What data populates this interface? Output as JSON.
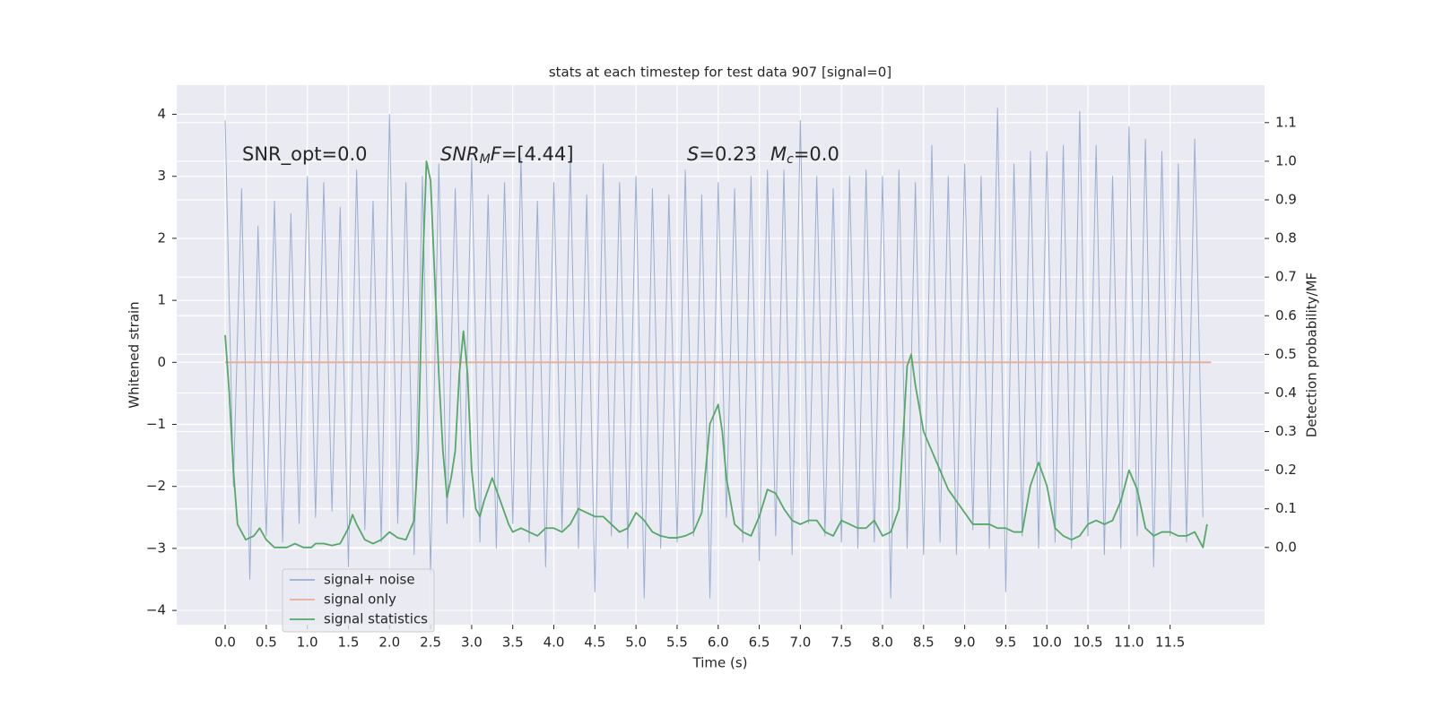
{
  "chart_data": {
    "type": "line",
    "title": "stats at each timestep for test data 907 [signal=0]",
    "xlabel": "Time (s)",
    "ylabel": "Whitened strain",
    "y2label": "Detection probability/MF",
    "xlim": [
      -0.59,
      12.65
    ],
    "ylim": [
      -4.23,
      4.47
    ],
    "y2lim": [
      -0.2,
      1.197
    ],
    "grid": true,
    "legend": "lower left",
    "xticks": [
      {
        "value": 0,
        "label": "0.0"
      },
      0.5,
      {
        "value": 1,
        "label": "1.0"
      },
      1.5,
      {
        "value": 2,
        "label": "2.0"
      },
      2.5,
      {
        "value": 3,
        "label": "3.0"
      },
      3.5,
      {
        "value": 4,
        "label": "4.0"
      },
      4.5,
      {
        "value": 5,
        "label": "5.0"
      },
      5.5,
      {
        "value": 6,
        "label": "6.0"
      },
      6.5,
      {
        "value": 7,
        "label": "7.0"
      },
      7.5,
      {
        "value": 8,
        "label": "8.0"
      },
      8.5,
      {
        "value": 9,
        "label": "9.0"
      },
      9.5,
      {
        "value": 10,
        "label": "10.0"
      },
      10.5,
      {
        "value": 11,
        "label": "11.0"
      },
      11.5
    ],
    "yticks": [
      {
        "value": -4,
        "label": "−4"
      },
      {
        "value": -3,
        "label": "−3"
      },
      {
        "value": -2,
        "label": "−2"
      },
      {
        "value": -1,
        "label": "−1"
      },
      0,
      1,
      2,
      3,
      4
    ],
    "y2ticks": [
      {
        "value": 0,
        "label": "0.0"
      },
      0.1,
      0.2,
      0.3,
      0.4,
      0.5,
      0.6,
      0.7,
      0.8,
      0.9,
      {
        "value": 1,
        "label": "1.0"
      },
      1.1
    ],
    "annotations": [
      [
        {
          "text": "SNR_opt=0.0"
        }
      ],
      [
        {
          "text": "SNR",
          "italic": true
        },
        {
          "text": "M",
          "italic": true,
          "sub": true
        },
        {
          "text": "F",
          "italic": true
        },
        {
          "text": "=[4.44]"
        }
      ],
      [
        {
          "text": "S",
          "italic": true
        },
        {
          "text": "=0.23"
        }
      ],
      [
        {
          "text": "M",
          "italic": true
        },
        {
          "text": "c",
          "italic": true,
          "sub": true
        },
        {
          "text": "=0.0"
        }
      ]
    ],
    "series": [
      {
        "name": "signal+ noise",
        "color": "#9aaed2",
        "x": [
          0.0,
          0.1,
          0.2,
          0.3,
          0.4,
          0.5,
          0.6,
          0.7,
          0.8,
          0.9,
          1.0,
          1.1,
          1.2,
          1.3,
          1.4,
          1.5,
          1.6,
          1.7,
          1.8,
          1.9,
          2.0,
          2.1,
          2.2,
          2.3,
          2.4,
          2.5,
          2.6,
          2.7,
          2.8,
          2.9,
          3.0,
          3.1,
          3.2,
          3.3,
          3.4,
          3.5,
          3.6,
          3.7,
          3.8,
          3.9,
          4.0,
          4.1,
          4.2,
          4.3,
          4.4,
          4.5,
          4.6,
          4.7,
          4.8,
          4.9,
          5.0,
          5.1,
          5.2,
          5.3,
          5.4,
          5.5,
          5.6,
          5.7,
          5.8,
          5.9,
          6.0,
          6.1,
          6.2,
          6.3,
          6.4,
          6.5,
          6.6,
          6.7,
          6.8,
          6.9,
          7.0,
          7.1,
          7.2,
          7.3,
          7.4,
          7.5,
          7.6,
          7.7,
          7.8,
          7.9,
          8.0,
          8.1,
          8.2,
          8.3,
          8.4,
          8.5,
          8.6,
          8.7,
          8.8,
          8.9,
          9.0,
          9.1,
          9.2,
          9.3,
          9.4,
          9.5,
          9.6,
          9.7,
          9.8,
          9.9,
          10.0,
          10.1,
          10.2,
          10.3,
          10.4,
          10.5,
          10.6,
          10.7,
          10.8,
          10.9,
          11.0,
          11.1,
          11.2,
          11.3,
          11.4,
          11.5,
          11.6,
          11.7,
          11.8,
          11.9
        ],
        "values": [
          3.9,
          -2.0,
          2.8,
          -3.5,
          2.2,
          -2.8,
          2.6,
          -2.9,
          2.4,
          -2.6,
          3.0,
          -2.5,
          2.9,
          -2.4,
          2.5,
          -3.3,
          3.1,
          -2.7,
          2.6,
          -2.9,
          4.0,
          -2.6,
          2.9,
          -3.1,
          3.0,
          -3.4,
          3.2,
          -2.6,
          2.8,
          -2.5,
          3.3,
          -2.9,
          2.7,
          -3.0,
          2.9,
          -2.6,
          3.3,
          -2.9,
          2.6,
          -3.3,
          2.9,
          -2.7,
          3.3,
          -3.0,
          2.7,
          -3.7,
          3.2,
          -2.8,
          2.9,
          -3.0,
          3.0,
          -3.8,
          2.8,
          -3.0,
          2.7,
          -2.9,
          3.1,
          -2.8,
          2.7,
          -3.8,
          2.9,
          -2.5,
          2.8,
          -2.9,
          3.0,
          -3.2,
          3.1,
          -2.8,
          3.1,
          -3.1,
          3.9,
          -2.6,
          3.0,
          -2.8,
          2.8,
          -2.9,
          3.0,
          -3.0,
          3.1,
          -2.9,
          3.0,
          -3.8,
          3.1,
          -3.0,
          2.9,
          -3.1,
          3.5,
          -2.9,
          3.0,
          -3.1,
          3.2,
          -2.7,
          3.0,
          -3.0,
          4.1,
          -3.7,
          3.2,
          -2.8,
          3.4,
          -3.0,
          3.4,
          -2.9,
          3.5,
          -3.0,
          4.05,
          -2.8,
          3.5,
          -3.1,
          3.0,
          -3.0,
          3.8,
          -2.8,
          3.6,
          -3.3,
          3.4,
          -2.8,
          3.2,
          -2.9,
          3.6,
          -2.5
        ]
      },
      {
        "name": "signal only",
        "color": "#e6ae98",
        "x": [
          0.0,
          12.0
        ],
        "values": [
          0,
          0
        ]
      },
      {
        "name": "signal statistics",
        "color": "#55a868",
        "axis": "y2",
        "x": [
          0,
          0.05,
          0.1,
          0.15,
          0.25,
          0.35,
          0.42,
          0.5,
          0.6,
          0.75,
          0.85,
          0.95,
          1.05,
          1.1,
          1.2,
          1.3,
          1.4,
          1.5,
          1.55,
          1.6,
          1.7,
          1.8,
          1.9,
          2.0,
          2.1,
          2.2,
          2.3,
          2.35,
          2.4,
          2.45,
          2.5,
          2.55,
          2.6,
          2.65,
          2.7,
          2.75,
          2.8,
          2.85,
          2.9,
          2.95,
          3.0,
          3.05,
          3.1,
          3.15,
          3.25,
          3.35,
          3.45,
          3.5,
          3.6,
          3.7,
          3.8,
          3.9,
          4.0,
          4.1,
          4.2,
          4.3,
          4.4,
          4.5,
          4.6,
          4.7,
          4.8,
          4.9,
          5.0,
          5.1,
          5.2,
          5.3,
          5.4,
          5.5,
          5.6,
          5.7,
          5.8,
          5.9,
          6.0,
          6.05,
          6.1,
          6.2,
          6.3,
          6.4,
          6.5,
          6.6,
          6.7,
          6.8,
          6.9,
          7.0,
          7.1,
          7.2,
          7.3,
          7.4,
          7.5,
          7.6,
          7.7,
          7.8,
          7.9,
          8.0,
          8.1,
          8.2,
          8.3,
          8.35,
          8.4,
          8.5,
          8.6,
          8.7,
          8.8,
          8.9,
          9.0,
          9.1,
          9.2,
          9.3,
          9.4,
          9.5,
          9.6,
          9.7,
          9.8,
          9.9,
          10.0,
          10.1,
          10.2,
          10.3,
          10.4,
          10.5,
          10.6,
          10.7,
          10.8,
          10.9,
          11.0,
          11.1,
          11.2,
          11.3,
          11.4,
          11.5,
          11.6,
          11.7,
          11.8,
          11.9,
          11.95
        ],
        "values": [
          0.55,
          0.4,
          0.2,
          0.06,
          0.02,
          0.03,
          0.05,
          0.02,
          0.0,
          0.0,
          0.01,
          0.0,
          0.0,
          0.01,
          0.01,
          0.005,
          0.01,
          0.05,
          0.085,
          0.06,
          0.02,
          0.01,
          0.02,
          0.04,
          0.025,
          0.02,
          0.07,
          0.25,
          0.7,
          1.0,
          0.95,
          0.7,
          0.45,
          0.25,
          0.13,
          0.18,
          0.25,
          0.45,
          0.56,
          0.45,
          0.2,
          0.1,
          0.08,
          0.12,
          0.18,
          0.12,
          0.06,
          0.04,
          0.05,
          0.04,
          0.03,
          0.05,
          0.05,
          0.04,
          0.06,
          0.1,
          0.09,
          0.08,
          0.08,
          0.06,
          0.04,
          0.05,
          0.09,
          0.07,
          0.04,
          0.03,
          0.025,
          0.025,
          0.03,
          0.04,
          0.09,
          0.32,
          0.37,
          0.3,
          0.18,
          0.06,
          0.04,
          0.03,
          0.08,
          0.15,
          0.14,
          0.1,
          0.07,
          0.06,
          0.07,
          0.07,
          0.04,
          0.03,
          0.07,
          0.06,
          0.05,
          0.05,
          0.07,
          0.03,
          0.04,
          0.1,
          0.47,
          0.5,
          0.42,
          0.3,
          0.25,
          0.2,
          0.15,
          0.12,
          0.09,
          0.06,
          0.06,
          0.06,
          0.05,
          0.05,
          0.04,
          0.04,
          0.16,
          0.22,
          0.16,
          0.05,
          0.03,
          0.02,
          0.03,
          0.06,
          0.07,
          0.06,
          0.07,
          0.12,
          0.2,
          0.15,
          0.05,
          0.03,
          0.04,
          0.04,
          0.03,
          0.03,
          0.04,
          0.0,
          0.06
        ]
      }
    ]
  }
}
